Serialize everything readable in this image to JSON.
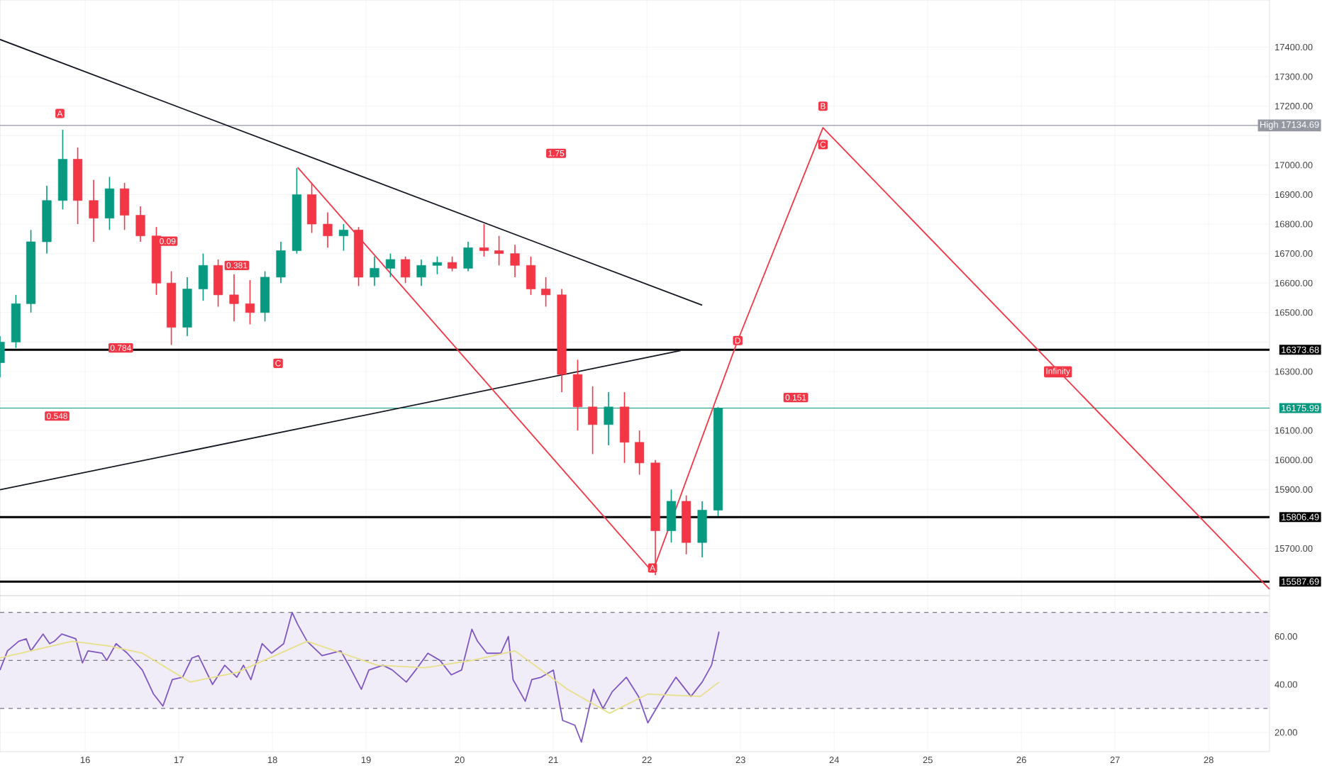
{
  "chart_data": [
    {
      "type": "candlestick",
      "x": [
        15.09,
        15.26,
        15.42,
        15.59,
        15.76,
        15.92,
        16.09,
        16.26,
        16.42,
        16.59,
        16.76,
        16.92,
        17.09,
        17.26,
        17.42,
        17.59,
        17.76,
        17.92,
        18.09,
        18.26,
        18.42,
        18.59,
        18.76,
        18.92,
        19.09,
        19.26,
        19.42,
        19.59,
        19.76,
        19.92,
        20.09,
        20.26,
        20.42,
        20.59,
        20.76,
        20.92,
        21.09,
        21.26,
        21.42,
        21.59,
        21.76,
        21.92,
        22.09,
        22.26,
        22.42,
        22.59,
        22.76
      ],
      "ohlc": [
        [
          16330,
          16420,
          16280,
          16400
        ],
        [
          16400,
          16560,
          16380,
          16530
        ],
        [
          16530,
          16780,
          16500,
          16740
        ],
        [
          16740,
          16930,
          16700,
          16880
        ],
        [
          16880,
          17120,
          16850,
          17020
        ],
        [
          17020,
          17060,
          16800,
          16880
        ],
        [
          16880,
          16950,
          16740,
          16820
        ],
        [
          16820,
          16960,
          16780,
          16920
        ],
        [
          16920,
          16940,
          16780,
          16830
        ],
        [
          16830,
          16860,
          16740,
          16760
        ],
        [
          16760,
          16790,
          16560,
          16600
        ],
        [
          16600,
          16640,
          16390,
          16450
        ],
        [
          16450,
          16620,
          16420,
          16580
        ],
        [
          16580,
          16700,
          16540,
          16660
        ],
        [
          16660,
          16680,
          16520,
          16560
        ],
        [
          16560,
          16630,
          16470,
          16530
        ],
        [
          16530,
          16610,
          16460,
          16500
        ],
        [
          16500,
          16640,
          16470,
          16620
        ],
        [
          16620,
          16740,
          16600,
          16710
        ],
        [
          16710,
          16990,
          16700,
          16900
        ],
        [
          16900,
          16940,
          16770,
          16800
        ],
        [
          16800,
          16840,
          16720,
          16760
        ],
        [
          16760,
          16800,
          16710,
          16780
        ],
        [
          16780,
          16790,
          16590,
          16620
        ],
        [
          16620,
          16690,
          16590,
          16650
        ],
        [
          16650,
          16700,
          16620,
          16680
        ],
        [
          16680,
          16690,
          16600,
          16620
        ],
        [
          16620,
          16680,
          16590,
          16660
        ],
        [
          16660,
          16690,
          16630,
          16670
        ],
        [
          16670,
          16690,
          16640,
          16650
        ],
        [
          16650,
          16740,
          16640,
          16720
        ],
        [
          16720,
          16800,
          16690,
          16710
        ],
        [
          16710,
          16760,
          16660,
          16700
        ],
        [
          16700,
          16730,
          16620,
          16660
        ],
        [
          16660,
          16690,
          16560,
          16580
        ],
        [
          16580,
          16620,
          16520,
          16560
        ],
        [
          16560,
          16580,
          16230,
          16290
        ],
        [
          16290,
          16340,
          16100,
          16180
        ],
        [
          16180,
          16250,
          16020,
          16120
        ],
        [
          16120,
          16230,
          16050,
          16180
        ],
        [
          16180,
          16230,
          15990,
          16060
        ],
        [
          16060,
          16100,
          15950,
          15990
        ],
        [
          15990,
          16000,
          15610,
          15760
        ],
        [
          15760,
          15900,
          15720,
          15860
        ],
        [
          15860,
          15880,
          15680,
          15720
        ],
        [
          15720,
          15860,
          15670,
          15830
        ],
        [
          15830,
          16180,
          15810,
          16175.99
        ]
      ],
      "colors": [
        "#089981",
        "#089981",
        "#089981",
        "#089981",
        "#089981",
        "#f23645",
        "#f23645",
        "#089981",
        "#f23645",
        "#f23645",
        "#f23645",
        "#f23645",
        "#089981",
        "#089981",
        "#f23645",
        "#f23645",
        "#f23645",
        "#089981",
        "#089981",
        "#089981",
        "#f23645",
        "#f23645",
        "#089981",
        "#f23645",
        "#089981",
        "#089981",
        "#f23645",
        "#089981",
        "#089981",
        "#f23645",
        "#089981",
        "#f23645",
        "#f23645",
        "#f23645",
        "#f23645",
        "#f23645",
        "#f23645",
        "#f23645",
        "#f23645",
        "#089981",
        "#f23645",
        "#f23645",
        "#f23645",
        "#089981",
        "#f23645",
        "#089981",
        "#089981"
      ],
      "series": [
        {
          "type": "line",
          "color": "#131722",
          "x": [
            15.09,
            22.59
          ],
          "values": [
            17426,
            16525
          ]
        },
        {
          "type": "line",
          "color": "#131722",
          "x": [
            15.09,
            22.36
          ],
          "values": [
            15899,
            16371
          ]
        },
        {
          "type": "line",
          "color": "#f23645",
          "x": [
            18.27,
            22.06,
            22.97,
            23.88,
            28.65
          ],
          "values": [
            16992,
            15620,
            16405,
            17127,
            15562
          ]
        }
      ],
      "xlim": [
        15.09,
        28.65
      ],
      "xticks": [
        16,
        17,
        18,
        19,
        20,
        21,
        22,
        23,
        24,
        25,
        26,
        27,
        28
      ],
      "ylim": [
        15540,
        17560
      ],
      "yticks": [
        {
          "value": 15600,
          "label": null
        },
        {
          "value": 15700,
          "label": "15700.00"
        },
        {
          "value": 15800,
          "label": null
        },
        {
          "value": 15900,
          "label": "15900.00"
        },
        {
          "value": 16000,
          "label": "16000.00"
        },
        {
          "value": 16100,
          "label": "16100.00"
        },
        {
          "value": 16200,
          "label": null
        },
        {
          "value": 16300,
          "label": "16300.00"
        },
        {
          "value": 16400,
          "label": null
        },
        {
          "value": 16500,
          "label": "16500.00"
        },
        {
          "value": 16600,
          "label": "16600.00"
        },
        {
          "value": 16700,
          "label": "16700.00"
        },
        {
          "value": 16800,
          "label": "16800.00"
        },
        {
          "value": 16900,
          "label": "16900.00"
        },
        {
          "value": 17000,
          "label": "17000.00"
        },
        {
          "value": 17100,
          "label": null
        },
        {
          "value": 17200,
          "label": "17200.00"
        },
        {
          "value": 17300,
          "label": "17300.00"
        },
        {
          "value": 17400,
          "label": "17400.00"
        }
      ],
      "tick_labels": "y",
      "grid": true,
      "ref_lines": [
        {
          "axis": "y",
          "value": 16373.68,
          "label": "16373.68",
          "color": "#000000"
        },
        {
          "axis": "y",
          "value": 15806.49,
          "label": "15806.49",
          "color": "#000000"
        },
        {
          "axis": "y",
          "value": 15587.69,
          "label": "15587.69",
          "color": "#000000"
        },
        {
          "axis": "y",
          "value": 16175.99,
          "label": "16175.99",
          "color": "#089981",
          "line_style": "solid"
        },
        {
          "axis": "y",
          "value": 17134.69,
          "label": "High 17134.69",
          "color": "#9598a1",
          "line_style": "solid"
        }
      ],
      "annotations": [
        {
          "text": "A",
          "x": 15.73,
          "y": 17175
        },
        {
          "text": "0.548",
          "x": 15.7,
          "y": 16149
        },
        {
          "text": "0.784",
          "x": 16.38,
          "y": 16380
        },
        {
          "text": "0.09",
          "x": 16.88,
          "y": 16742
        },
        {
          "text": "0.381",
          "x": 17.62,
          "y": 16660
        },
        {
          "text": "C",
          "x": 18.06,
          "y": 16328
        },
        {
          "text": "1.75",
          "x": 21.03,
          "y": 17040
        },
        {
          "text": "A",
          "x": 22.06,
          "y": 15634
        },
        {
          "text": "D",
          "x": 22.97,
          "y": 16405
        },
        {
          "text": "B",
          "x": 23.88,
          "y": 17200
        },
        {
          "text": "C",
          "x": 23.88,
          "y": 17070
        },
        {
          "text": "0.151",
          "x": 23.59,
          "y": 16212
        },
        {
          "text": "Infinity",
          "x": 26.39,
          "y": 16299
        }
      ]
    },
    {
      "type": "line",
      "series": [
        {
          "color": "#7e57c2",
          "x": [
            15.09,
            15.17,
            15.29,
            15.37,
            15.42,
            15.55,
            15.62,
            15.67,
            15.75,
            15.9,
            15.97,
            16.03,
            16.18,
            16.23,
            16.33,
            16.45,
            16.61,
            16.73,
            16.83,
            16.93,
            17.04,
            17.14,
            17.21,
            17.36,
            17.49,
            17.62,
            17.69,
            17.77,
            17.89,
            17.99,
            18.12,
            18.21,
            18.27,
            18.37,
            18.53,
            18.73,
            18.83,
            18.95,
            19.03,
            19.18,
            19.28,
            19.43,
            19.53,
            19.66,
            19.79,
            19.91,
            20.02,
            20.13,
            20.19,
            20.29,
            20.44,
            20.52,
            20.57,
            20.7,
            20.77,
            20.87,
            21.0,
            21.1,
            21.23,
            21.3,
            21.43,
            21.53,
            21.63,
            21.78,
            21.91,
            22.01,
            22.16,
            22.31,
            22.47,
            22.59,
            22.69,
            22.77
          ],
          "values": [
            46,
            54,
            58,
            59,
            54,
            61,
            57,
            58,
            61,
            59,
            49,
            54,
            53,
            50,
            57,
            53,
            46,
            36,
            31,
            42,
            43,
            51,
            52,
            40,
            48,
            43,
            48,
            42,
            57,
            53,
            57,
            70,
            65,
            58,
            52,
            54,
            47,
            38,
            46,
            48,
            46,
            41,
            46,
            53,
            50,
            44,
            46,
            63,
            58,
            53,
            53,
            60,
            42,
            33,
            42,
            43,
            46,
            25,
            23,
            16,
            38,
            30,
            37,
            43,
            35,
            24,
            34,
            43,
            35,
            41,
            48,
            62
          ]
        },
        {
          "color": "#e6e08a",
          "x": [
            15.09,
            15.86,
            16.26,
            16.61,
            17.12,
            17.62,
            18.37,
            19.12,
            19.63,
            20.13,
            20.59,
            21.15,
            21.6,
            22.01,
            22.57,
            22.77
          ],
          "values": [
            51,
            58,
            56,
            53,
            41,
            45,
            58,
            48,
            47,
            50,
            54,
            38,
            28,
            36,
            35,
            41
          ]
        }
      ],
      "xlim": [
        15.09,
        28.65
      ],
      "xticks": [
        16,
        17,
        18,
        19,
        20,
        21,
        22,
        23,
        24,
        25,
        26,
        27,
        28
      ],
      "ylim": [
        12,
        77
      ],
      "yticks": [
        {
          "value": 20,
          "label": "20.00"
        },
        {
          "value": 40,
          "label": "40.00"
        },
        {
          "value": 60,
          "label": "60.00"
        }
      ],
      "grid": true,
      "bands": [
        {
          "axis": "y",
          "from": 30,
          "to": 70,
          "color": "#f0ecf8"
        }
      ],
      "ref_lines": [
        {
          "axis": "y",
          "value": 70,
          "color": "#787b86",
          "line_style": "dashed"
        },
        {
          "axis": "y",
          "value": 50,
          "color": "#787b86",
          "line_style": "dashed"
        },
        {
          "axis": "y",
          "value": 30,
          "color": "#787b86",
          "line_style": "dashed"
        }
      ]
    }
  ]
}
